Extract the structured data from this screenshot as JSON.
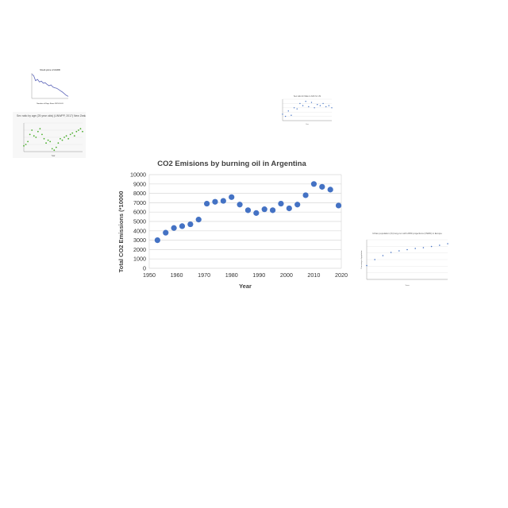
{
  "chart_data": [
    {
      "type": "scatter",
      "title": "CO2 Emisions by burning oil in Argentina",
      "xlabel": "Year",
      "ylabel": "Total CO2 Emissions (*10000",
      "xlim": [
        1950,
        2020
      ],
      "ylim": [
        0,
        10000
      ],
      "xticks": [
        "1950",
        "1960",
        "1970",
        "1980",
        "1990",
        "2000",
        "2010",
        "2020"
      ],
      "yticks": [
        "0",
        "1000",
        "2000",
        "3000",
        "4000",
        "5000",
        "6000",
        "7000",
        "8000",
        "9000",
        "10000"
      ],
      "grid": true,
      "color": "#4472C4",
      "x": [
        1953,
        1956,
        1959,
        1962,
        1965,
        1968,
        1971,
        1974,
        1977,
        1980,
        1983,
        1986,
        1989,
        1992,
        1995,
        1998,
        2001,
        2004,
        2007,
        2010,
        2013,
        2016,
        2019
      ],
      "y": [
        3000,
        3800,
        4300,
        4500,
        4700,
        5200,
        6900,
        7100,
        7200,
        7600,
        6800,
        6200,
        5900,
        6300,
        6200,
        6900,
        6400,
        6800,
        7800,
        9000,
        8700,
        8400,
        6700
      ]
    },
    {
      "type": "line",
      "title": "Stock price of AGDD",
      "xlabel": "Number of Days Since 1970-01-01",
      "ylabel": "",
      "color": "#5a63b8",
      "x": [
        0,
        1,
        2,
        3,
        4,
        5,
        6,
        7,
        8,
        9,
        10,
        11,
        12,
        13,
        14,
        15,
        16,
        17,
        18,
        19
      ],
      "y": [
        0.95,
        0.9,
        0.7,
        0.75,
        0.65,
        0.68,
        0.6,
        0.62,
        0.55,
        0.5,
        0.53,
        0.45,
        0.42,
        0.4,
        0.35,
        0.3,
        0.25,
        0.18,
        0.12,
        0.08
      ]
    },
    {
      "type": "scatter",
      "title": "Sex ratio by age (25 year olds) (UNWPP, 2017) New Zealand",
      "xlabel": "Year",
      "ylabel": "",
      "color": "#4caf2f",
      "x": [
        0,
        1,
        2,
        3,
        4,
        5,
        6,
        7,
        8,
        9,
        10,
        11,
        12,
        13,
        14,
        15,
        16,
        17,
        18,
        19,
        20,
        21,
        22,
        23,
        24,
        25,
        26,
        27,
        28,
        29
      ],
      "y": [
        0.2,
        0.25,
        0.35,
        0.6,
        0.75,
        0.55,
        0.5,
        0.7,
        0.8,
        0.6,
        0.45,
        0.3,
        0.4,
        0.35,
        0.1,
        0.05,
        0.15,
        0.3,
        0.45,
        0.4,
        0.5,
        0.55,
        0.45,
        0.6,
        0.65,
        0.55,
        0.7,
        0.75,
        0.8,
        0.7
      ]
    },
    {
      "type": "scatter",
      "title": "Sex ratio for Male to birth for US",
      "xlabel": "Year",
      "ylabel": "",
      "color": "#4472C4",
      "x": [
        0,
        1,
        2,
        3,
        4,
        5,
        6,
        7,
        8,
        9,
        10,
        11,
        12,
        13,
        14,
        15,
        16,
        17
      ],
      "y": [
        0.3,
        0.2,
        0.45,
        0.25,
        0.6,
        0.55,
        0.8,
        0.7,
        0.9,
        0.65,
        0.85,
        0.6,
        0.75,
        0.7,
        0.8,
        0.65,
        0.7,
        0.6
      ]
    },
    {
      "type": "scatter",
      "title": "Urban population (%) long-run with 2050 projections (OWID) in Europe",
      "xlabel": "Years",
      "ylabel": "Percentage of population",
      "color": "#4472C4",
      "x": [
        0,
        1,
        2,
        3,
        4,
        5,
        6,
        7,
        8,
        9,
        10
      ],
      "y": [
        0.35,
        0.5,
        0.6,
        0.68,
        0.72,
        0.75,
        0.78,
        0.8,
        0.83,
        0.86,
        0.9
      ]
    }
  ]
}
